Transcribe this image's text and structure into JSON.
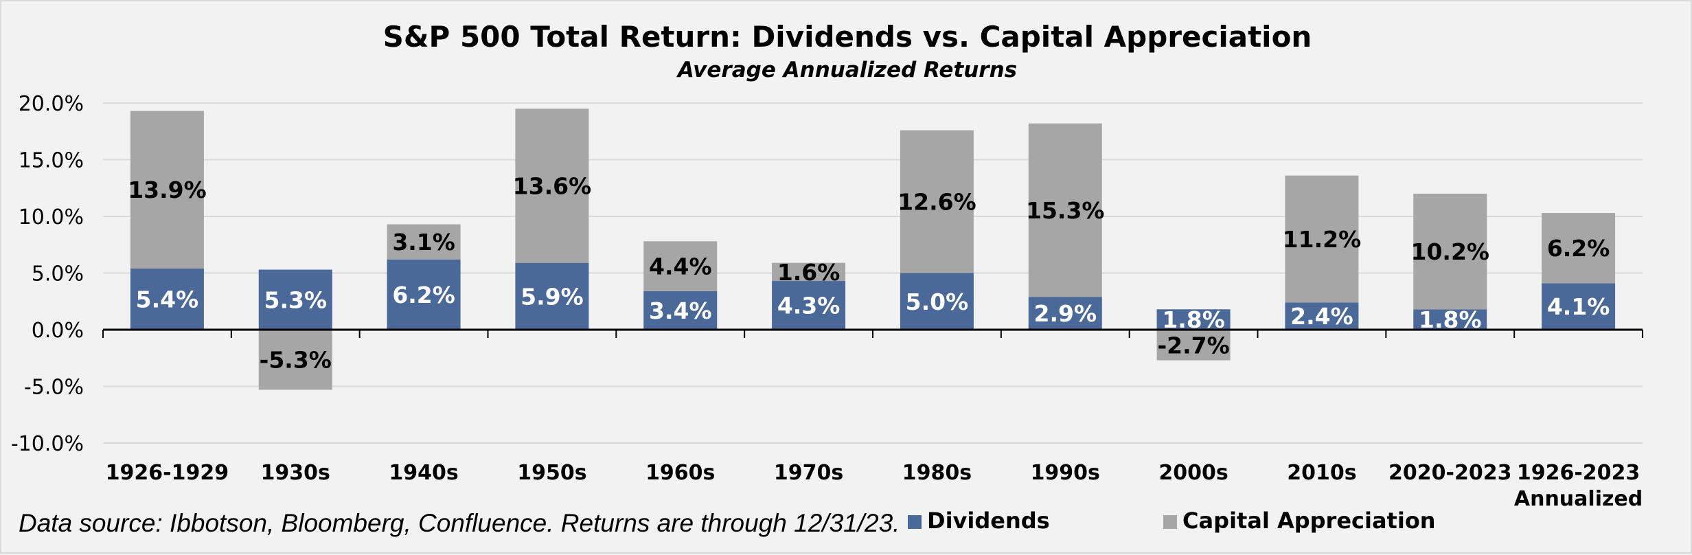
{
  "chart_data": {
    "type": "bar",
    "stacked": true,
    "title": "S&P 500 Total Return: Dividends vs. Capital Appreciation",
    "subtitle": "Average Annualized Returns",
    "categories": [
      [
        "1926-1929"
      ],
      [
        "1930s"
      ],
      [
        "1940s"
      ],
      [
        "1950s"
      ],
      [
        "1960s"
      ],
      [
        "1970s"
      ],
      [
        "1980s"
      ],
      [
        "1990s"
      ],
      [
        "2000s"
      ],
      [
        "2010s"
      ],
      [
        "2020-2023"
      ],
      [
        "1926-2023",
        "Annualized"
      ]
    ],
    "series": [
      {
        "name": "Dividends",
        "color": "#4a6898",
        "values": [
          5.4,
          5.3,
          6.2,
          5.9,
          3.4,
          4.3,
          5.0,
          2.9,
          1.8,
          2.4,
          1.8,
          4.1
        ],
        "labels": [
          "5.4%",
          "5.3%",
          "6.2%",
          "5.9%",
          "3.4%",
          "4.3%",
          "5.0%",
          "2.9%",
          "1.8%",
          "2.4%",
          "1.8%",
          "4.1%"
        ]
      },
      {
        "name": "Capital Appreciation",
        "color": "#a6a6a6",
        "values": [
          13.9,
          -5.3,
          3.1,
          13.6,
          4.4,
          1.6,
          12.6,
          15.3,
          -2.7,
          11.2,
          10.2,
          6.2
        ],
        "labels": [
          "13.9%",
          "-5.3%",
          "3.1%",
          "13.6%",
          "4.4%",
          "1.6%",
          "12.6%",
          "15.3%",
          "-2.7%",
          "11.2%",
          "10.2%",
          "6.2%"
        ]
      }
    ],
    "ylim": [
      -10,
      20
    ],
    "yticks": [
      20,
      15,
      10,
      5,
      0,
      -5,
      -10
    ],
    "ytick_labels": [
      "20.0%",
      "15.0%",
      "10.0%",
      "5.0%",
      "0.0%",
      "-5.0%",
      "-10.0%"
    ],
    "grid": true,
    "legend": {
      "position": "bottom"
    }
  },
  "footer": {
    "source": "Data source: Ibbotson, Bloomberg, Confluence. Returns are through 12/31/23."
  }
}
